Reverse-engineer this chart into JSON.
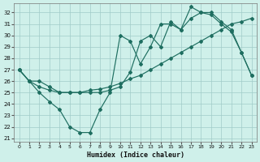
{
  "xlabel": "Humidex (Indice chaleur)",
  "bg_color": "#cff0ea",
  "line_color": "#1e6e60",
  "grid_color": "#a0ccc8",
  "xlim": [
    -0.5,
    23.5
  ],
  "ylim": [
    20.7,
    32.8
  ],
  "yticks": [
    21,
    22,
    23,
    24,
    25,
    26,
    27,
    28,
    29,
    30,
    31,
    32
  ],
  "xticks": [
    0,
    1,
    2,
    3,
    4,
    5,
    6,
    7,
    8,
    9,
    10,
    11,
    12,
    13,
    14,
    15,
    16,
    17,
    18,
    19,
    20,
    21,
    22,
    23
  ],
  "line1_x": [
    0,
    1,
    2,
    3,
    4,
    5,
    6,
    7,
    8,
    9,
    10,
    11,
    12,
    13,
    14,
    15,
    16,
    17,
    18,
    19,
    20,
    21,
    22,
    23
  ],
  "line1_y": [
    27.0,
    26.0,
    25.0,
    24.2,
    23.5,
    22.0,
    21.5,
    21.5,
    23.5,
    25.0,
    30.0,
    29.5,
    27.5,
    29.0,
    31.0,
    31.0,
    30.5,
    31.5,
    32.0,
    31.8,
    31.0,
    30.3,
    28.5,
    26.5
  ],
  "line2_x": [
    0,
    1,
    2,
    3,
    4,
    5,
    6,
    7,
    8,
    9,
    10,
    11,
    12,
    13,
    14,
    15,
    16,
    17,
    18,
    19,
    20,
    21,
    22,
    23
  ],
  "line2_y": [
    27.0,
    26.0,
    25.5,
    25.2,
    25.0,
    25.0,
    25.0,
    25.2,
    25.3,
    25.5,
    25.8,
    26.2,
    26.5,
    27.0,
    27.5,
    28.0,
    28.5,
    29.0,
    29.5,
    30.0,
    30.5,
    31.0,
    31.2,
    31.5
  ],
  "line3_x": [
    0,
    1,
    2,
    3,
    4,
    5,
    6,
    7,
    8,
    9,
    10,
    11,
    12,
    13,
    14,
    15,
    16,
    17,
    18,
    19,
    20,
    21,
    22,
    23
  ],
  "line3_y": [
    27.0,
    26.0,
    26.0,
    25.5,
    25.0,
    25.0,
    25.0,
    25.0,
    25.0,
    25.2,
    25.5,
    26.8,
    29.5,
    30.0,
    29.0,
    31.2,
    30.5,
    32.5,
    32.0,
    32.0,
    31.2,
    30.5,
    28.5,
    26.5
  ]
}
